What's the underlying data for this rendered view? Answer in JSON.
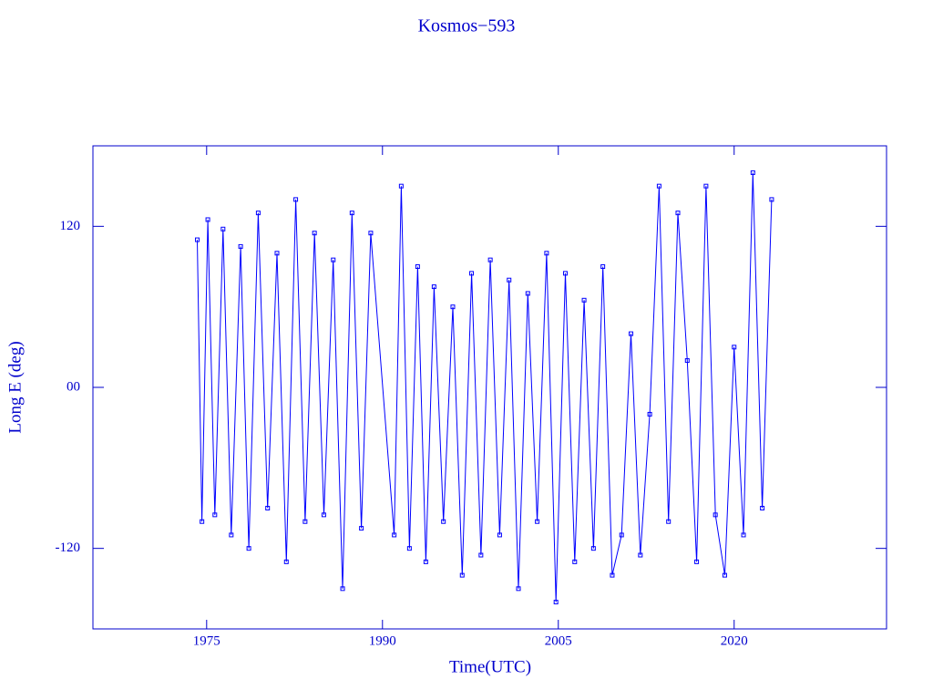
{
  "chart_data": {
    "type": "line",
    "title": "Kosmos−593",
    "x_label": "Time(UTC)",
    "y_label": "Long E (deg)",
    "color": "#0000ff",
    "xlim": [
      1965.3,
      2033
    ],
    "xticks": [
      1975,
      1990,
      2005,
      2020
    ],
    "ylim": [
      -180,
      180
    ],
    "yticks": [
      120,
      {
        "value": 0,
        "label": "00"
      },
      -120
    ],
    "x": [
      1974.2,
      1974.6,
      1975.1,
      1975.7,
      1976.4,
      1977.1,
      1977.9,
      1978.6,
      1979.4,
      1980.2,
      1981.0,
      1981.8,
      1982.6,
      1983.4,
      1984.2,
      1985.0,
      1985.8,
      1986.6,
      1987.4,
      1988.2,
      1989.0,
      1991.0,
      1991.6,
      1992.3,
      1993.0,
      1993.7,
      1994.4,
      1995.2,
      1996.0,
      1996.8,
      1997.6,
      1998.4,
      1999.2,
      2000.0,
      2000.8,
      2001.6,
      2002.4,
      2003.2,
      2004.0,
      2004.8,
      2005.6,
      2006.4,
      2007.2,
      2008.0,
      2008.8,
      2009.6,
      2010.4,
      2011.2,
      2012.0,
      2012.8,
      2013.6,
      2014.4,
      2015.2,
      2016.0,
      2016.8,
      2017.6,
      2018.4,
      2019.2,
      2020.0,
      2020.8,
      2021.6,
      2022.4,
      2023.2
    ],
    "values": [
      110,
      -100,
      125,
      -95,
      118,
      -110,
      105,
      -120,
      130,
      -90,
      100,
      -130,
      140,
      -100,
      115,
      -95,
      95,
      -150,
      130,
      -105,
      115,
      -110,
      150,
      -120,
      90,
      -130,
      75,
      -100,
      60,
      -140,
      85,
      -125,
      95,
      -110,
      80,
      -150,
      70,
      -100,
      100,
      -160,
      85,
      -130,
      65,
      -120,
      90,
      -140,
      -110,
      40,
      -125,
      -20,
      150,
      -100,
      130,
      20,
      -130,
      150,
      -95,
      -140,
      30,
      -110,
      160,
      -90,
      140
    ]
  }
}
